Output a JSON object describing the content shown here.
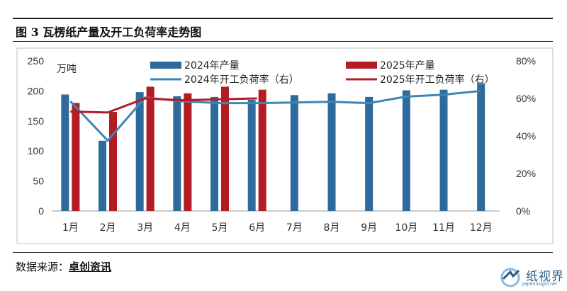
{
  "figure_title": "图 3  瓦楞纸产量及开工负荷率走势图",
  "source_label": "数据来源：",
  "source_value": "卓创资讯",
  "brand": {
    "name": "纸视界",
    "url": "paperinsight.net"
  },
  "colors": {
    "bar_2024": "#2e6b9c",
    "bar_2025": "#b41c24",
    "line_2024": "#3f86b3",
    "line_2025": "#b41c24"
  },
  "chart_data": {
    "type": "bar",
    "categories": [
      "1月",
      "2月",
      "3月",
      "4月",
      "5月",
      "6月",
      "7月",
      "8月",
      "9月",
      "10月",
      "11月",
      "12月"
    ],
    "y_unit_label": "万吨",
    "ylim": [
      0,
      250
    ],
    "yticks": [
      "0",
      "50",
      "100",
      "150",
      "200",
      "250"
    ],
    "y2lim": [
      0,
      80
    ],
    "y2ticks": [
      "0%",
      "20%",
      "40%",
      "60%",
      "80%"
    ],
    "grid": false,
    "legend_position": "top",
    "series": [
      {
        "name": "2024年产量",
        "type": "bar",
        "axis": "left",
        "values": [
          194,
          117,
          198,
          191,
          190,
          185,
          193,
          196,
          190,
          201,
          202,
          212
        ]
      },
      {
        "name": "2025年产量",
        "type": "bar",
        "axis": "left",
        "values": [
          180,
          165,
          207,
          196,
          207,
          202,
          null,
          null,
          null,
          null,
          null,
          null
        ]
      },
      {
        "name": "2024年开工负荷率（右）",
        "type": "line",
        "axis": "right",
        "values": [
          58.5,
          37.5,
          60.5,
          58.5,
          57.5,
          57.5,
          57.8,
          58.2,
          57.5,
          61,
          62,
          64
        ]
      },
      {
        "name": "2025年开工负荷率（右）",
        "type": "line",
        "axis": "right",
        "values": [
          53,
          52.5,
          60,
          59,
          59.5,
          60,
          null,
          null,
          null,
          null,
          null,
          null
        ]
      }
    ]
  }
}
